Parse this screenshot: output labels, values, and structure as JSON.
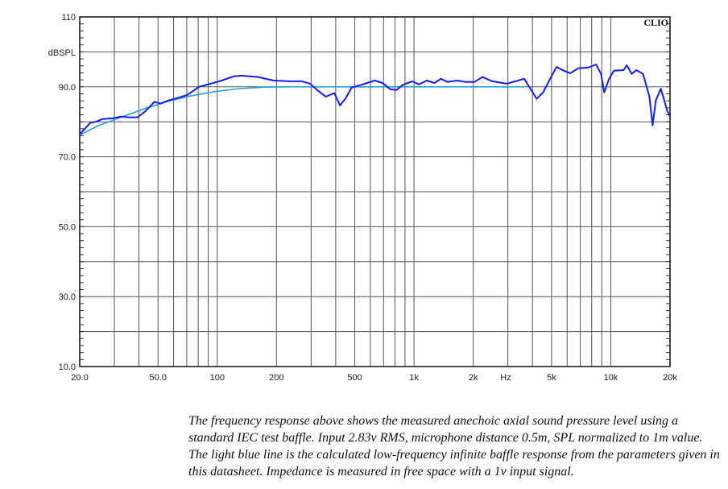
{
  "chart_data": {
    "type": "line",
    "title": "",
    "brand_label": "CLIO",
    "xlabel": "Hz",
    "ylabel": "dBSPL",
    "x_scale": "log",
    "xlim": [
      20,
      20000
    ],
    "ylim": [
      10,
      110
    ],
    "grid": true,
    "x_ticks": [
      {
        "value": 20,
        "label": "20.0"
      },
      {
        "value": 50,
        "label": "50.0"
      },
      {
        "value": 100,
        "label": "100"
      },
      {
        "value": 200,
        "label": "200"
      },
      {
        "value": 500,
        "label": "500"
      },
      {
        "value": 1000,
        "label": "1k"
      },
      {
        "value": 2000,
        "label": "2k"
      },
      {
        "value": 5000,
        "label": "5k"
      },
      {
        "value": 10000,
        "label": "10k"
      },
      {
        "value": 20000,
        "label": "20k"
      }
    ],
    "y_ticks": [
      {
        "value": 110,
        "label": "110"
      },
      {
        "value": 90,
        "label": "90.0"
      },
      {
        "value": 70,
        "label": "70.0"
      },
      {
        "value": 50,
        "label": "50.0"
      },
      {
        "value": 30,
        "label": "30.0"
      },
      {
        "value": 10,
        "label": "10.0"
      }
    ],
    "series": [
      {
        "name": "Measured anechoic axial SPL",
        "color": "#1a1aff",
        "x": [
          20,
          21.2,
          22.6,
          24.4,
          26.1,
          29.4,
          32.3,
          35.6,
          39.3,
          42.9,
          47.9,
          51.6,
          56.4,
          62.6,
          70.6,
          80.7,
          92.6,
          105,
          121,
          133,
          161,
          194,
          233,
          269,
          296,
          325,
          356,
          394,
          420,
          448,
          482,
          548,
          630,
          693,
          757,
          815,
          874,
          978,
          1060,
          1160,
          1270,
          1370,
          1480,
          1650,
          1820,
          2030,
          2230,
          2500,
          2960,
          3630,
          3900,
          4200,
          4530,
          4970,
          5300,
          5780,
          6230,
          6830,
          7670,
          8420,
          8920,
          9260,
          9800,
          10370,
          11620,
          12060,
          12770,
          13500,
          14580,
          15710,
          16320,
          16950,
          17960,
          19370,
          20000
        ],
        "y": [
          76.4,
          78.0,
          79.7,
          80.1,
          80.8,
          81.0,
          81.5,
          81.3,
          81.3,
          82.9,
          85.7,
          85.2,
          86.1,
          86.8,
          87.7,
          90.0,
          90.9,
          91.8,
          93.0,
          93.2,
          92.8,
          91.8,
          91.6,
          91.6,
          90.9,
          88.9,
          87.2,
          88.2,
          84.7,
          86.6,
          89.8,
          90.7,
          91.8,
          91.1,
          89.3,
          89.1,
          90.5,
          91.6,
          90.7,
          91.8,
          91.1,
          92.3,
          91.4,
          91.8,
          91.4,
          91.4,
          92.8,
          91.6,
          90.9,
          92.3,
          89.5,
          86.6,
          88.4,
          92.8,
          95.7,
          94.6,
          93.9,
          95.3,
          95.5,
          96.4,
          93.7,
          88.4,
          92.3,
          94.6,
          94.8,
          96.2,
          93.7,
          94.8,
          93.7,
          87.2,
          79.0,
          86.1,
          89.5,
          83.1,
          81.5
        ]
      },
      {
        "name": "Calculated LF infinite baffle response",
        "color": "#2a9fd6",
        "x": [
          20,
          24.4,
          32.3,
          42.9,
          56.4,
          74.6,
          98.7,
          130,
          172,
          227,
          400,
          1000,
          3630
        ],
        "y": [
          76.2,
          78.7,
          81.3,
          83.8,
          85.9,
          87.5,
          88.7,
          89.5,
          89.9,
          90.0,
          90.0,
          90.0,
          90.0
        ]
      }
    ]
  },
  "caption": "The frequency response above shows the measured anechoic axial sound pressure level using a standard IEC test baffle. Input 2.83v RMS, microphone distance 0.5m, SPL normalized to 1m value. The light blue line is the calculated low-frequency infinite baffle response from the parameters given in this datasheet. Impedance is measured in free space with a 1v input signal."
}
